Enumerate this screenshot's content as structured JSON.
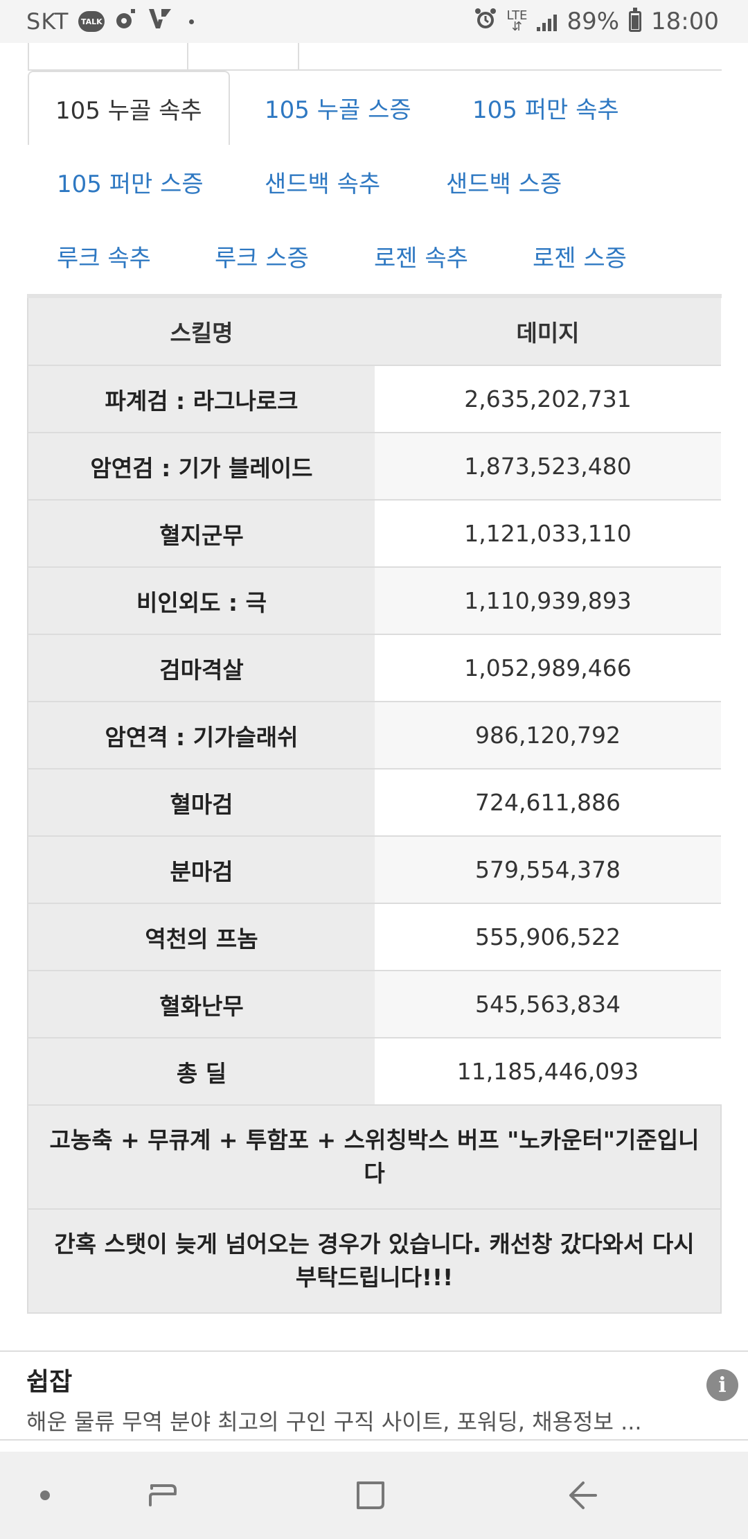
{
  "status_bar": {
    "carrier": "SKT",
    "talk_label": "TALK",
    "network": "LTE",
    "battery": "89%",
    "time": "18:00"
  },
  "tabs": [
    {
      "label": "105 누골 속추",
      "active": true
    },
    {
      "label": "105 누골 스증",
      "active": false
    },
    {
      "label": "105 퍼만 속추",
      "active": false
    },
    {
      "label": "105 퍼만 스증",
      "active": false
    },
    {
      "label": "샌드백 속추",
      "active": false
    },
    {
      "label": "샌드백 스증",
      "active": false
    },
    {
      "label": "루크 속추",
      "active": false
    },
    {
      "label": "루크 스증",
      "active": false
    },
    {
      "label": "로젠 속추",
      "active": false
    },
    {
      "label": "로젠 스증",
      "active": false
    }
  ],
  "table": {
    "headers": [
      "스킬명",
      "데미지"
    ],
    "rows": [
      {
        "skill": "파계검 : 라그나로크",
        "damage": "2,635,202,731"
      },
      {
        "skill": "암연검 : 기가 블레이드",
        "damage": "1,873,523,480"
      },
      {
        "skill": "혈지군무",
        "damage": "1,121,033,110"
      },
      {
        "skill": "비인외도 : 극",
        "damage": "1,110,939,893"
      },
      {
        "skill": "검마격살",
        "damage": "1,052,989,466"
      },
      {
        "skill": "암연격 : 기가슬래쉬",
        "damage": "986,120,792"
      },
      {
        "skill": "혈마검",
        "damage": "724,611,886"
      },
      {
        "skill": "분마검",
        "damage": "579,554,378"
      },
      {
        "skill": "역천의 프놈",
        "damage": "555,906,522"
      },
      {
        "skill": "혈화난무",
        "damage": "545,563,834"
      },
      {
        "skill": "총 딜",
        "damage": "11,185,446,093"
      }
    ],
    "notes": [
      "고농축 + 무큐계 + 투함포 + 스위칭박스 버프 \"노카운터\"기준입니다",
      "간혹 스탯이 늦게 넘어오는 경우가 있습니다. 캐선창 갔다와서 다시 부탁드립니다!!!"
    ]
  },
  "ad": {
    "title": "쉽잡",
    "description": "해운 물류 무역 분야 최고의 구인 구직 사이트, 포워딩, 채용정보 ...",
    "info_icon": "info-icon"
  },
  "nav_bar": {
    "icons": [
      "dot-icon",
      "recent-apps-icon",
      "home-icon",
      "back-icon"
    ]
  },
  "colors": {
    "tab_link": "#2e78c2",
    "table_header_bg": "#ececec",
    "status_bar_bg": "#f4f4f4",
    "nav_bar_bg": "#f0f0f0"
  }
}
